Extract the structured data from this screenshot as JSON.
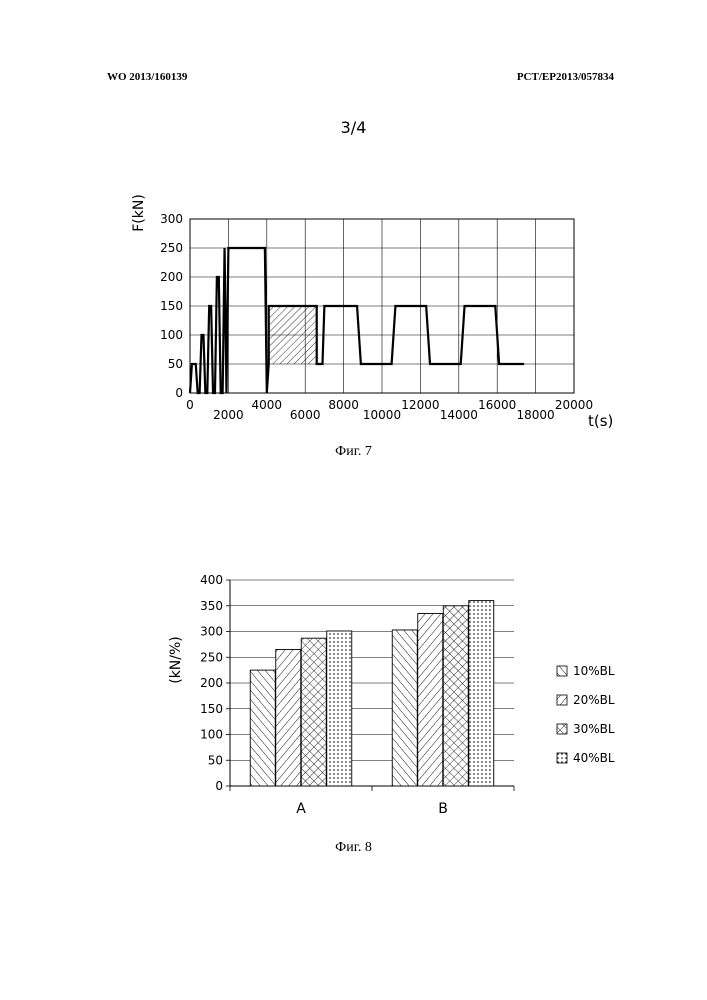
{
  "header": {
    "left": "WO 2013/160139",
    "right": "PCT/EP2013/057834"
  },
  "page_number": "3/4",
  "figures": {
    "fig7_caption": "Фиг. 7",
    "fig8_caption": "Фиг. 8"
  },
  "chart_data": [
    {
      "type": "line",
      "title": "",
      "xlabel": "t(s)",
      "ylabel": "F(kN)",
      "xlim": [
        0,
        20000
      ],
      "ylim": [
        0,
        300
      ],
      "x_ticks": [
        0,
        2000,
        4000,
        6000,
        8000,
        10000,
        12000,
        14000,
        16000,
        18000,
        20000
      ],
      "y_ticks": [
        0,
        50,
        100,
        150,
        200,
        250,
        300
      ],
      "grid": true,
      "series": [
        {
          "x": [
            0,
            100,
            300,
            400,
            500,
            600,
            700,
            800,
            900,
            1000,
            1100,
            1200,
            1300,
            1400,
            1500,
            1600,
            1700,
            1800,
            1900,
            2000,
            2100,
            3900,
            4000,
            4100
          ],
          "y": [
            0,
            50,
            50,
            0,
            0,
            100,
            100,
            0,
            0,
            150,
            150,
            0,
            0,
            200,
            200,
            0,
            0,
            250,
            0,
            250,
            250,
            250,
            0,
            50
          ]
        },
        {
          "x": [
            4100,
            4100,
            6600,
            6600,
            6700,
            6900,
            7000,
            7000,
            8700,
            8900,
            10500,
            10700,
            12300,
            12500,
            14100,
            14300,
            15900,
            16100,
            17400
          ],
          "y": [
            50,
            150,
            150,
            50,
            50,
            50,
            150,
            150,
            150,
            50,
            50,
            150,
            150,
            50,
            50,
            150,
            150,
            50,
            50
          ]
        }
      ],
      "hatched_region": {
        "x": [
          4100,
          6600
        ],
        "y": [
          50,
          150
        ]
      }
    },
    {
      "type": "bar",
      "title": "",
      "xlabel": "",
      "ylabel": "(kN/%)",
      "categories": [
        "A",
        "B"
      ],
      "ylim": [
        0,
        400
      ],
      "y_ticks": [
        0,
        50,
        100,
        150,
        200,
        250,
        300,
        350,
        400
      ],
      "grid": true,
      "legend_position": "right",
      "series": [
        {
          "name": "10%BL",
          "values": [
            225,
            303
          ]
        },
        {
          "name": "20%BL",
          "values": [
            265,
            335
          ]
        },
        {
          "name": "30%BL",
          "values": [
            287,
            350
          ]
        },
        {
          "name": "40%BL",
          "values": [
            301,
            360
          ]
        }
      ]
    }
  ]
}
